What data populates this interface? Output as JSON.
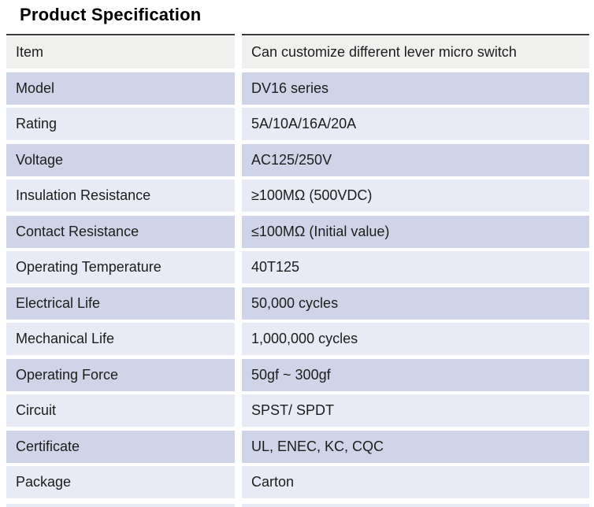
{
  "page": {
    "title": "Product Specification"
  },
  "colors": {
    "header_row_bg": "#f0f0ee",
    "row_dark_bg": "#d0d4e8",
    "row_light_bg": "#e8eaf5",
    "top_rule": "#3a3a3a",
    "text": "#1d1d1d"
  },
  "table": {
    "rows": [
      {
        "label": "Item",
        "value": "Can customize different lever micro switch"
      },
      {
        "label": "Model",
        "value": "DV16 series"
      },
      {
        "label": "Rating",
        "value": "5A/10A/16A/20A"
      },
      {
        "label": "Voltage",
        "value": "AC125/250V"
      },
      {
        "label": "Insulation Resistance",
        "value": "≥100MΩ (500VDC)"
      },
      {
        "label": "Contact Resistance",
        "value": "≤100MΩ (Initial value)"
      },
      {
        "label": "Operating Temperature",
        "value": "40T125"
      },
      {
        "label": "Electrical Life",
        "value": "50,000 cycles"
      },
      {
        "label": "Mechanical Life",
        "value": "1,000,000 cycles"
      },
      {
        "label": "Operating Force",
        "value": "50gf ~ 300gf"
      },
      {
        "label": "Circuit",
        "value": "SPST/ SPDT"
      },
      {
        "label": "Certificate",
        "value": "UL, ENEC, KC, CQC"
      },
      {
        "label": "Package",
        "value": "Carton"
      }
    ]
  }
}
